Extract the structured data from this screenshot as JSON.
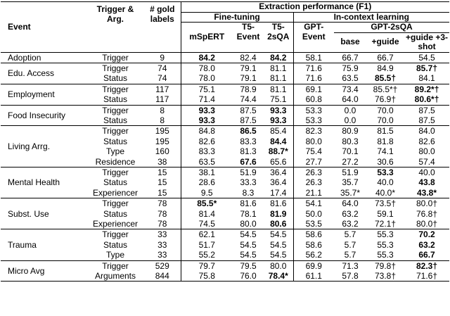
{
  "table": {
    "header": {
      "event": "Event",
      "arg": "Trigger & Arg.",
      "gold": "# gold labels",
      "group": "Extraction performance (F1)",
      "fine_tuning": "Fine-tuning",
      "in_context": "In-context learning",
      "models": [
        "mSpERT",
        "T5-Event",
        "T5-2sQA",
        "GPT-Event"
      ],
      "gpt2sqa": "GPT-2sQA",
      "variants": [
        "base",
        "+guide",
        "+guide +3-shot"
      ]
    },
    "groups": [
      {
        "event": "Adoption",
        "rows": [
          {
            "arg": "Trigger",
            "gold": "9",
            "scores": [
              "84.2",
              "82.4",
              "84.2",
              "58.1",
              "66.7",
              "66.7",
              "54.5"
            ],
            "bold": [
              0,
              2
            ]
          }
        ]
      },
      {
        "event": "Edu. Access",
        "rows": [
          {
            "arg": "Trigger",
            "gold": "74",
            "scores": [
              "78.0",
              "79.1",
              "81.1",
              "71.6",
              "75.9",
              "84.9",
              "85.7†"
            ],
            "bold": [
              6
            ]
          },
          {
            "arg": "Status",
            "gold": "74",
            "scores": [
              "78.0",
              "79.1",
              "81.1",
              "71.6",
              "63.5",
              "85.5†",
              "84.1"
            ],
            "bold": [
              5
            ]
          }
        ]
      },
      {
        "event": "Employment",
        "rows": [
          {
            "arg": "Trigger",
            "gold": "117",
            "scores": [
              "75.1",
              "78.9",
              "81.1",
              "69.1",
              "73.4",
              "85.5*†",
              "89.2*†"
            ],
            "bold": [
              6
            ]
          },
          {
            "arg": "Status",
            "gold": "117",
            "scores": [
              "71.4",
              "74.4",
              "75.1",
              "60.8",
              "64.0",
              "76.9†",
              "80.6*†"
            ],
            "bold": [
              6
            ]
          }
        ]
      },
      {
        "event": "Food Insecurity",
        "rows": [
          {
            "arg": "Trigger",
            "gold": "8",
            "scores": [
              "93.3",
              "87.5",
              "93.3",
              "53.3",
              "0.0",
              "70.0",
              "87.5"
            ],
            "bold": [
              0,
              2
            ]
          },
          {
            "arg": "Status",
            "gold": "8",
            "scores": [
              "93.3",
              "87.5",
              "93.3",
              "53.3",
              "0.0",
              "70.0",
              "87.5"
            ],
            "bold": [
              0,
              2
            ]
          }
        ]
      },
      {
        "event": "Living Arrg.",
        "rows": [
          {
            "arg": "Trigger",
            "gold": "195",
            "scores": [
              "84.8",
              "86.5",
              "85.4",
              "82.3",
              "80.9",
              "81.5",
              "84.0"
            ],
            "bold": [
              1
            ]
          },
          {
            "arg": "Status",
            "gold": "195",
            "scores": [
              "82.6",
              "83.3",
              "84.4",
              "80.0",
              "80.3",
              "81.8",
              "82.6"
            ],
            "bold": [
              2
            ]
          },
          {
            "arg": "Type",
            "gold": "160",
            "scores": [
              "83.3",
              "81.3",
              "88.7*",
              "75.4",
              "70.1",
              "74.1",
              "80.0"
            ],
            "bold": [
              2
            ]
          },
          {
            "arg": "Residence",
            "gold": "38",
            "scores": [
              "63.5",
              "67.6",
              "65.6",
              "27.7",
              "27.2",
              "30.6",
              "57.4"
            ],
            "bold": [
              1
            ]
          }
        ]
      },
      {
        "event": "Mental Health",
        "rows": [
          {
            "arg": "Trigger",
            "gold": "15",
            "scores": [
              "38.1",
              "51.9",
              "36.4",
              "26.3",
              "51.9",
              "53.3",
              "40.0"
            ],
            "bold": [
              5
            ]
          },
          {
            "arg": "Status",
            "gold": "15",
            "scores": [
              "28.6",
              "33.3",
              "36.4",
              "26.3",
              "35.7",
              "40.0",
              "43.8"
            ],
            "bold": [
              6
            ]
          },
          {
            "arg": "Experiencer",
            "gold": "15",
            "scores": [
              "9.5",
              "8.3",
              "17.4",
              "21.1",
              "35.7*",
              "40.0*",
              "43.8*"
            ],
            "bold": [
              6
            ]
          }
        ]
      },
      {
        "event": "Subst. Use",
        "rows": [
          {
            "arg": "Trigger",
            "gold": "78",
            "scores": [
              "85.5*",
              "81.6",
              "81.6",
              "54.1",
              "64.0",
              "73.5†",
              "80.0†"
            ],
            "bold": [
              0
            ]
          },
          {
            "arg": "Status",
            "gold": "78",
            "scores": [
              "81.4",
              "78.1",
              "81.9",
              "50.0",
              "63.2",
              "59.1",
              "76.8†"
            ],
            "bold": [
              2
            ]
          },
          {
            "arg": "Experiencer",
            "gold": "78",
            "scores": [
              "74.5",
              "80.0",
              "80.6",
              "53.5",
              "63.2",
              "72.1†",
              "80.0†"
            ],
            "bold": [
              2
            ]
          }
        ]
      },
      {
        "event": "Trauma",
        "rows": [
          {
            "arg": "Trigger",
            "gold": "33",
            "scores": [
              "62.1",
              "54.5",
              "54.5",
              "58.6",
              "5.7",
              "55.3",
              "70.2"
            ],
            "bold": [
              6
            ]
          },
          {
            "arg": "Status",
            "gold": "33",
            "scores": [
              "51.7",
              "54.5",
              "54.5",
              "58.6",
              "5.7",
              "55.3",
              "63.2"
            ],
            "bold": [
              6
            ]
          },
          {
            "arg": "Type",
            "gold": "33",
            "scores": [
              "55.2",
              "54.5",
              "54.5",
              "56.2",
              "5.7",
              "55.3",
              "66.7"
            ],
            "bold": [
              6
            ]
          }
        ]
      },
      {
        "event": "Micro Avg",
        "rows": [
          {
            "arg": "Trigger",
            "gold": "529",
            "scores": [
              "79.7",
              "79.5",
              "80.0",
              "69.9",
              "71.3",
              "79.8†",
              "82.3†"
            ],
            "bold": [
              6
            ]
          },
          {
            "arg": "Arguments",
            "gold": "844",
            "scores": [
              "75.8",
              "76.0",
              "78.4*",
              "61.1",
              "57.8",
              "73.8†",
              "71.6†"
            ],
            "bold": [
              2
            ]
          }
        ]
      }
    ]
  }
}
